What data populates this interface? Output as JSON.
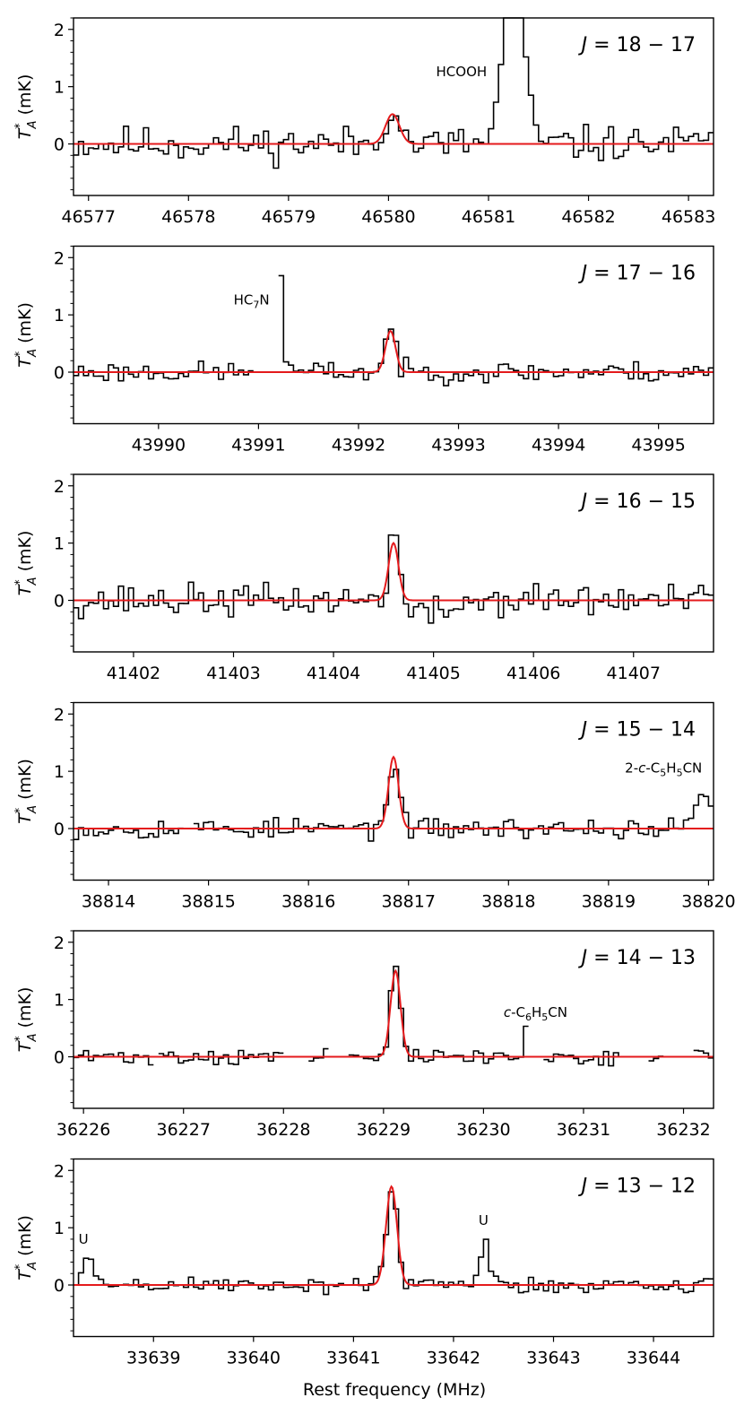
{
  "figure": {
    "xlabel": "Rest frequency (MHz)",
    "ylabel_main": "T",
    "ylabel_sup": "*",
    "ylabel_sub": "A",
    "ylabel_unit": " (mK)",
    "colors": {
      "spectrum": "#000000",
      "fit": "#e41a1c",
      "axes": "#000000"
    }
  },
  "chart_data": [
    {
      "type": "line",
      "label_j": "J",
      "label_rest": " = 18 − 17",
      "xlim": [
        46576.85,
        46583.25
      ],
      "ylim": [
        -0.9,
        2.2
      ],
      "xticks": [
        46577,
        46578,
        46579,
        46580,
        46581,
        46582,
        46583
      ],
      "yticks": [
        0,
        1,
        2
      ],
      "line_center": 46580.04,
      "fit_peak": 0.52,
      "fit_width": 0.07,
      "noise": 0.22,
      "seed": 11,
      "features": [
        {
          "x": 46580.04,
          "h": 0.18,
          "w": 0.05
        },
        {
          "x": 46581.25,
          "h": 2.9,
          "w": 0.1
        }
      ],
      "gaps": [],
      "annotations": [
        {
          "parts": [
            {
              "t": "HCOOH"
            }
          ],
          "x": 46580.73,
          "y": 1.18
        }
      ]
    },
    {
      "type": "line",
      "label_j": "J",
      "label_rest": " = 17 − 16",
      "xlim": [
        43989.15,
        43995.55
      ],
      "ylim": [
        -0.9,
        2.2
      ],
      "xticks": [
        43990,
        43991,
        43992,
        43993,
        43994,
        43995
      ],
      "yticks": [
        0,
        1,
        2
      ],
      "line_center": 43992.32,
      "fit_peak": 0.72,
      "fit_width": 0.05,
      "noise": 0.13,
      "seed": 23,
      "features": [
        {
          "x": 43992.32,
          "h": 0.12,
          "w": 0.04
        },
        {
          "x": 43991.24,
          "h": 3.0,
          "w": 0.015
        }
      ],
      "gaps": [
        [
          43990.95,
          43991.2
        ]
      ],
      "annotations": [
        {
          "parts": [
            {
              "t": "HC"
            },
            {
              "t": "7",
              "sub": true
            },
            {
              "t": "N"
            }
          ],
          "x": 43990.93,
          "y": 1.18
        }
      ]
    },
    {
      "type": "line",
      "label_j": "J",
      "label_rest": " = 16 − 15",
      "xlim": [
        41401.4,
        41407.8
      ],
      "ylim": [
        -0.9,
        2.2
      ],
      "xticks": [
        41402,
        41403,
        41404,
        41405,
        41406,
        41407
      ],
      "yticks": [
        0,
        1,
        2
      ],
      "line_center": 41404.6,
      "fit_peak": 1.0,
      "fit_width": 0.05,
      "noise": 0.2,
      "seed": 37,
      "features": [
        {
          "x": 41404.6,
          "h": 0.4,
          "w": 0.04
        },
        {
          "x": 41404.95,
          "h": -0.25,
          "w": 0.2
        }
      ],
      "gaps": [],
      "annotations": []
    },
    {
      "type": "line",
      "label_j": "J",
      "label_rest": " = 15 − 14",
      "xlim": [
        38813.65,
        38820.05
      ],
      "ylim": [
        -0.9,
        2.2
      ],
      "xticks": [
        38814,
        38815,
        38816,
        38817,
        38818,
        38819,
        38820
      ],
      "yticks": [
        0,
        1,
        2
      ],
      "line_center": 38816.85,
      "fit_peak": 1.25,
      "fit_width": 0.05,
      "noise": 0.13,
      "seed": 53,
      "features": [
        {
          "x": 38819.95,
          "h": 0.7,
          "w": 0.06
        }
      ],
      "gaps": [
        [
          38814.75,
          38814.85
        ]
      ],
      "annotations": [
        {
          "parts": [
            {
              "t": "2-"
            },
            {
              "t": "c",
              "it": true
            },
            {
              "t": "-C"
            },
            {
              "t": "5",
              "sub": true
            },
            {
              "t": "H"
            },
            {
              "t": "5",
              "sub": true
            },
            {
              "t": "CN"
            }
          ],
          "x": 38819.55,
          "y": 0.98
        }
      ]
    },
    {
      "type": "line",
      "label_j": "J",
      "label_rest": " = 14 − 13",
      "xlim": [
        36225.9,
        36232.3
      ],
      "ylim": [
        -0.9,
        2.2
      ],
      "xticks": [
        36226,
        36227,
        36228,
        36229,
        36230,
        36231,
        36232
      ],
      "yticks": [
        0,
        1,
        2
      ],
      "line_center": 36229.12,
      "fit_peak": 1.5,
      "fit_width": 0.05,
      "noise": 0.1,
      "seed": 71,
      "features": [
        {
          "x": 36230.44,
          "h": 0.6,
          "w": 0.02
        }
      ],
      "gaps": [
        [
          36226.7,
          36226.75
        ],
        [
          36228.0,
          36228.25
        ],
        [
          36228.45,
          36228.65
        ],
        [
          36230.45,
          36230.6
        ],
        [
          36231.38,
          36231.65
        ],
        [
          36231.82,
          36232.08
        ]
      ],
      "annotations": [
        {
          "parts": [
            {
              "t": "c",
              "it": true
            },
            {
              "t": "-C"
            },
            {
              "t": "6",
              "sub": true
            },
            {
              "t": "H"
            },
            {
              "t": "5",
              "sub": true
            },
            {
              "t": "CN"
            }
          ],
          "x": 36230.52,
          "y": 0.7
        }
      ]
    },
    {
      "type": "line",
      "label_j": "J",
      "label_rest": " = 13 − 12",
      "xlim": [
        33638.2,
        33644.6
      ],
      "ylim": [
        -0.9,
        2.2
      ],
      "xticks": [
        33639,
        33640,
        33641,
        33642,
        33643,
        33644
      ],
      "yticks": [
        0,
        1,
        2
      ],
      "line_center": 33641.38,
      "fit_peak": 1.72,
      "fit_width": 0.055,
      "noise": 0.11,
      "seed": 89,
      "features": [
        {
          "x": 33638.35,
          "h": 0.5,
          "w": 0.05
        },
        {
          "x": 33642.32,
          "h": 0.85,
          "w": 0.04
        }
      ],
      "gaps": [],
      "annotations": [
        {
          "parts": [
            {
              "t": "U"
            }
          ],
          "x": 33638.3,
          "y": 0.72
        },
        {
          "parts": [
            {
              "t": "U"
            }
          ],
          "x": 33642.3,
          "y": 1.05
        }
      ]
    }
  ]
}
